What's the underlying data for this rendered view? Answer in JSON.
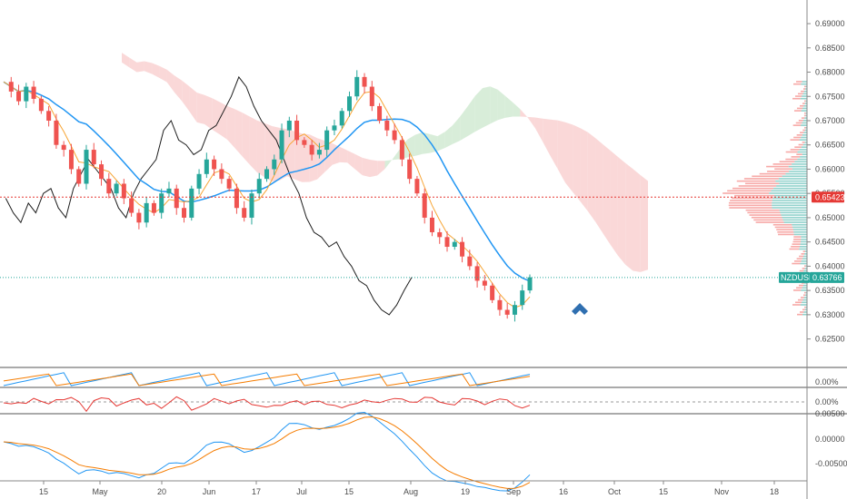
{
  "chart_data": {
    "type": "candlestick",
    "symbol": "NZDUSD",
    "last_price_label": "0.63766",
    "level_price_label": "0.65423",
    "last_price": 0.63766,
    "level_price": 0.65423,
    "x_labels": [
      "15",
      "May",
      "20",
      "Jun",
      "17",
      "Jul",
      "15",
      "Aug",
      "19",
      "Sep",
      "16",
      "Oct",
      "15",
      "Nov",
      "18"
    ],
    "y_ticks": [
      "0.69000",
      "0.68500",
      "0.68000",
      "0.67500",
      "0.67000",
      "0.66500",
      "0.66000",
      "0.65500",
      "0.65000",
      "0.64500",
      "0.64000",
      "0.63500",
      "0.63000",
      "0.62500"
    ],
    "ylim": [
      0.621,
      0.693
    ],
    "osc_labels": [
      "0.00%",
      "0.00%",
      "0.00500",
      "0.00000",
      "-0.00500"
    ],
    "price_path": [
      0.678,
      0.676,
      0.674,
      0.677,
      0.6745,
      0.672,
      0.67,
      0.665,
      0.664,
      0.66,
      0.657,
      0.664,
      0.661,
      0.658,
      0.655,
      0.657,
      0.654,
      0.651,
      0.649,
      0.653,
      0.651,
      0.655,
      0.656,
      0.652,
      0.65,
      0.656,
      0.659,
      0.662,
      0.66,
      0.658,
      0.656,
      0.652,
      0.65,
      0.655,
      0.658,
      0.66,
      0.662,
      0.668,
      0.67,
      0.666,
      0.665,
      0.663,
      0.664,
      0.668,
      0.669,
      0.672,
      0.675,
      0.679,
      0.677,
      0.673,
      0.67,
      0.668,
      0.666,
      0.662,
      0.658,
      0.655,
      0.65,
      0.647,
      0.646,
      0.644,
      0.645,
      0.642,
      0.64,
      0.637,
      0.636,
      0.633,
      0.631,
      0.63,
      0.632,
      0.635,
      0.6377
    ],
    "resistance_arrow": "up",
    "colors": {
      "bull": "#26a69a",
      "bear": "#ef5350",
      "base_line": "#2196f3",
      "conversion_line": "#f7a535",
      "lagging_line": "#1e1e1e",
      "cloud_bear": "#f8c8c8",
      "cloud_bull": "#c8e6c9",
      "level_line": "#e53935",
      "last_line": "#26a69a",
      "arrow": "#2f6fb0"
    }
  }
}
